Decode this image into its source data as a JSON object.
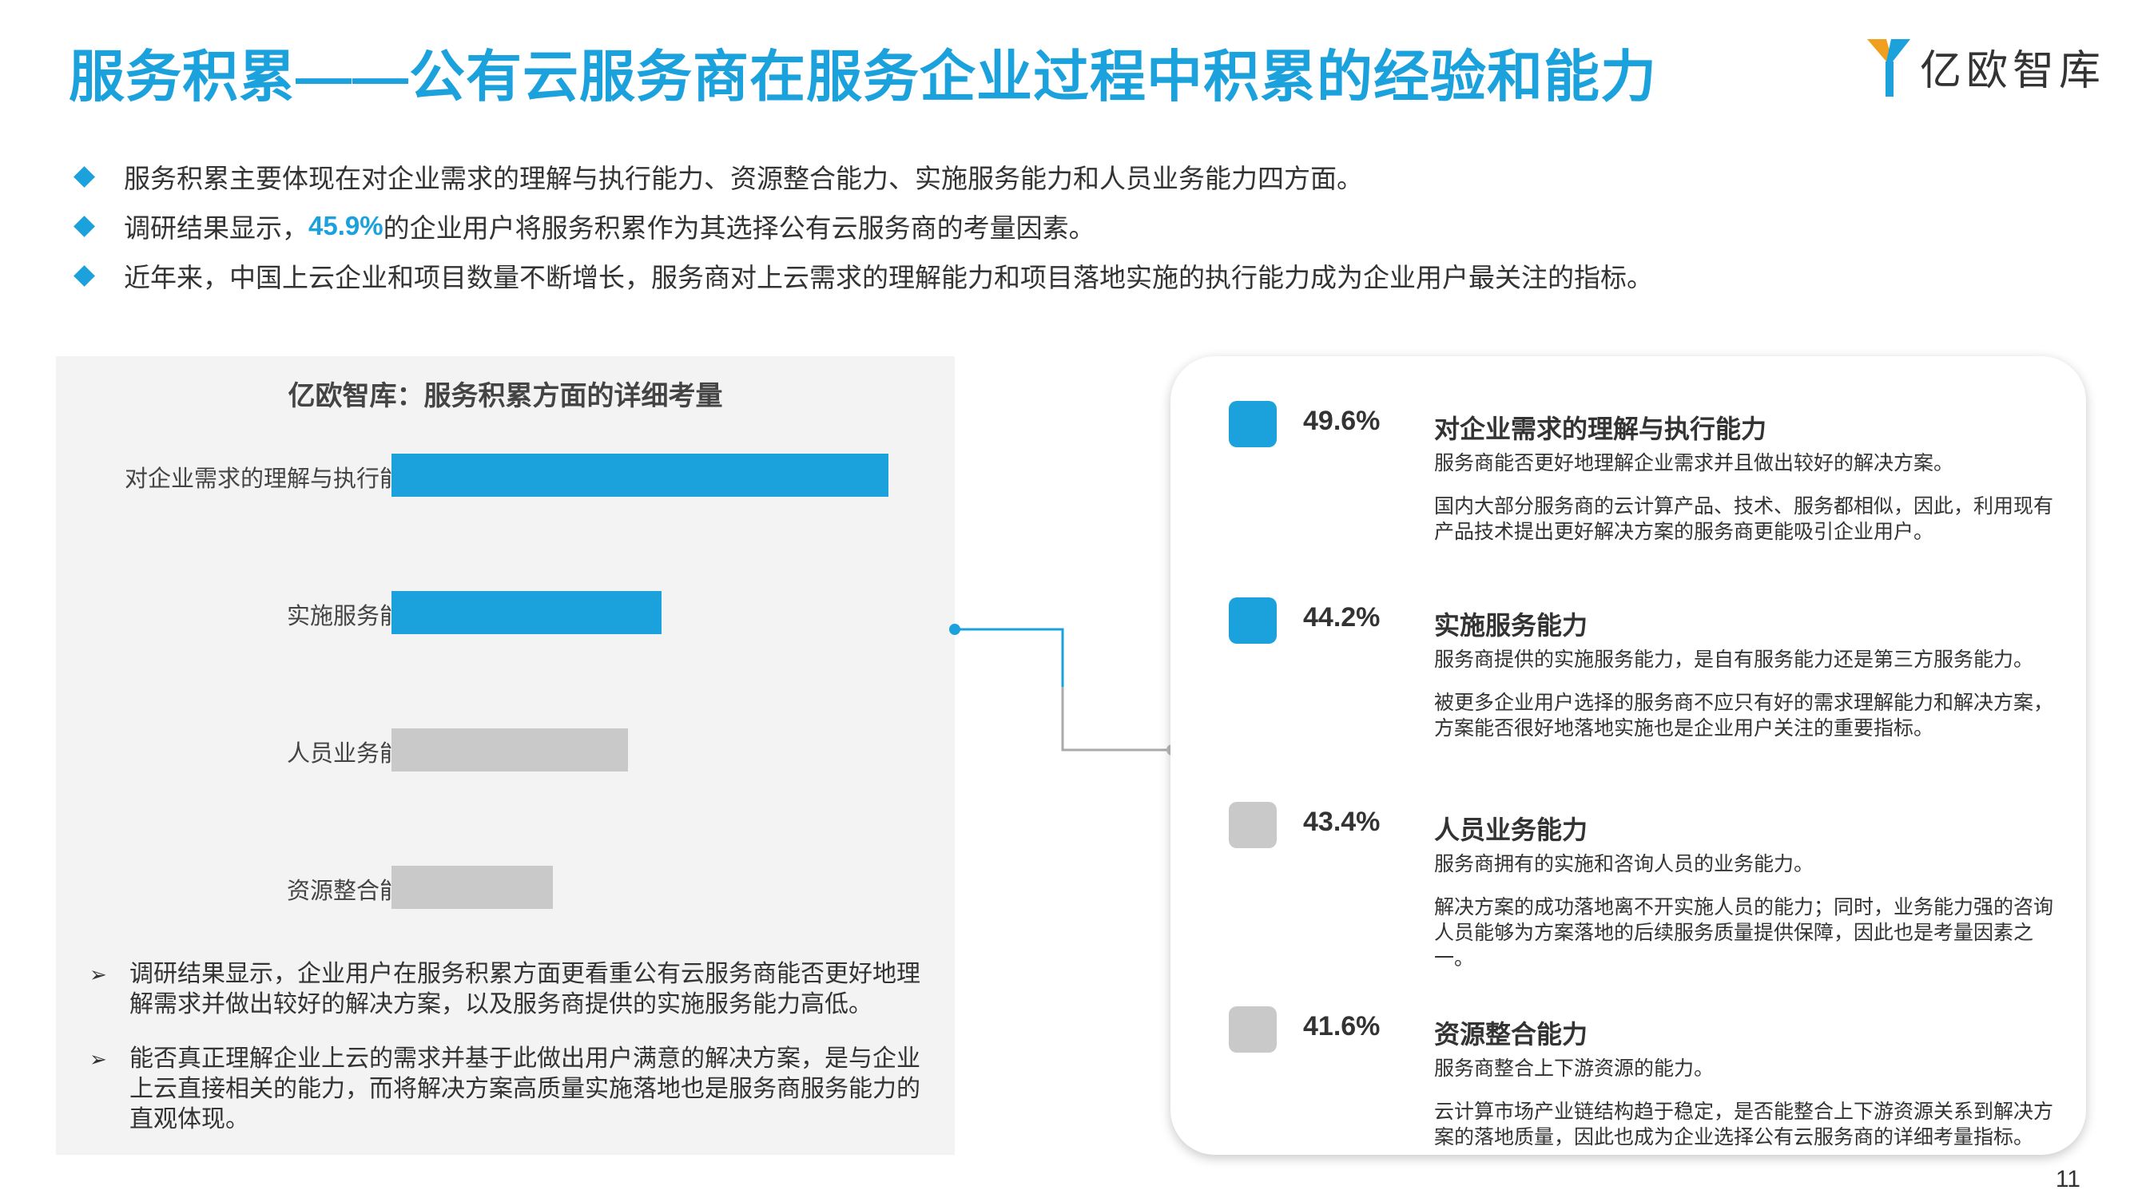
{
  "header": {
    "title": "服务积累——公有云服务商在服务企业过程中积累的经验和能力",
    "logo_text": "亿欧智库"
  },
  "bullets": {
    "b1": "服务积累主要体现在对企业需求的理解与执行能力、资源整合能力、实施服务能力和人员业务能力四方面。",
    "b2_prefix": "调研结果显示，",
    "b2_highlight": "45.9%",
    "b2_suffix": "的企业用户将服务积累作为其选择公有云服务商的考量因素。",
    "b3": "近年来，中国上云企业和项目数量不断增长，服务商对上云需求的理解能力和项目落地实施的执行能力成为企业用户最关注的指标。"
  },
  "chart_data": {
    "type": "bar",
    "orientation": "horizontal",
    "title": "亿欧智库：服务积累方面的详细考量",
    "categories": [
      "对企业需求的理解与执行能力",
      "实施服务能力",
      "人员业务能力",
      "资源整合能力"
    ],
    "values": [
      49.6,
      44.2,
      43.4,
      41.6
    ],
    "unit": "%",
    "bar_colors": [
      "#1BA1DB",
      "#1BA1DB",
      "#C9C9C9",
      "#C9C9C9"
    ],
    "grid": false
  },
  "notes": [
    "调研结果显示，企业用户在服务积累方面更看重公有云服务商能否更好地理解需求并做出较好的解决方案，以及服务商提供的实施服务能力高低。",
    "能否真正理解企业上云的需求并基于此做出用户满意的解决方案，是与企业上云直接相关的能力，而将解决方案高质量实施落地也是服务商服务能力的直观体现。"
  ],
  "details": [
    {
      "pct": "49.6%",
      "title": "对企业需求的理解与执行能力",
      "desc1": "服务商能否更好地理解企业需求并且做出较好的解决方案。",
      "desc2": "国内大部分服务商的云计算产品、技术、服务都相似，因此，利用现有产品技术提出更好解决方案的服务商更能吸引企业用户。"
    },
    {
      "pct": "44.2%",
      "title": "实施服务能力",
      "desc1": "服务商提供的实施服务能力，是自有服务能力还是第三方服务能力。",
      "desc2": "被更多企业用户选择的服务商不应只有好的需求理解能力和解决方案，方案能否很好地落地实施也是企业用户关注的重要指标。"
    },
    {
      "pct": "43.4%",
      "title": "人员业务能力",
      "desc1": "服务商拥有的实施和咨询人员的业务能力。",
      "desc2": "解决方案的成功落地离不开实施人员的能力；同时，业务能力强的咨询人员能够为方案落地的后续服务质量提供保障，因此也是考量因素之一。"
    },
    {
      "pct": "41.6%",
      "title": "资源整合能力",
      "desc1": "服务商整合上下游资源的能力。",
      "desc2": "云计算市场产业链结构趋于稳定，是否能整合上下游资源关系到解决方案的落地质量，因此也成为企业选择公有云服务商的详细考量指标。"
    }
  ],
  "colors": {
    "accent": "#1BA1DB",
    "gray": "#C9C9C9"
  },
  "page_number": "11"
}
